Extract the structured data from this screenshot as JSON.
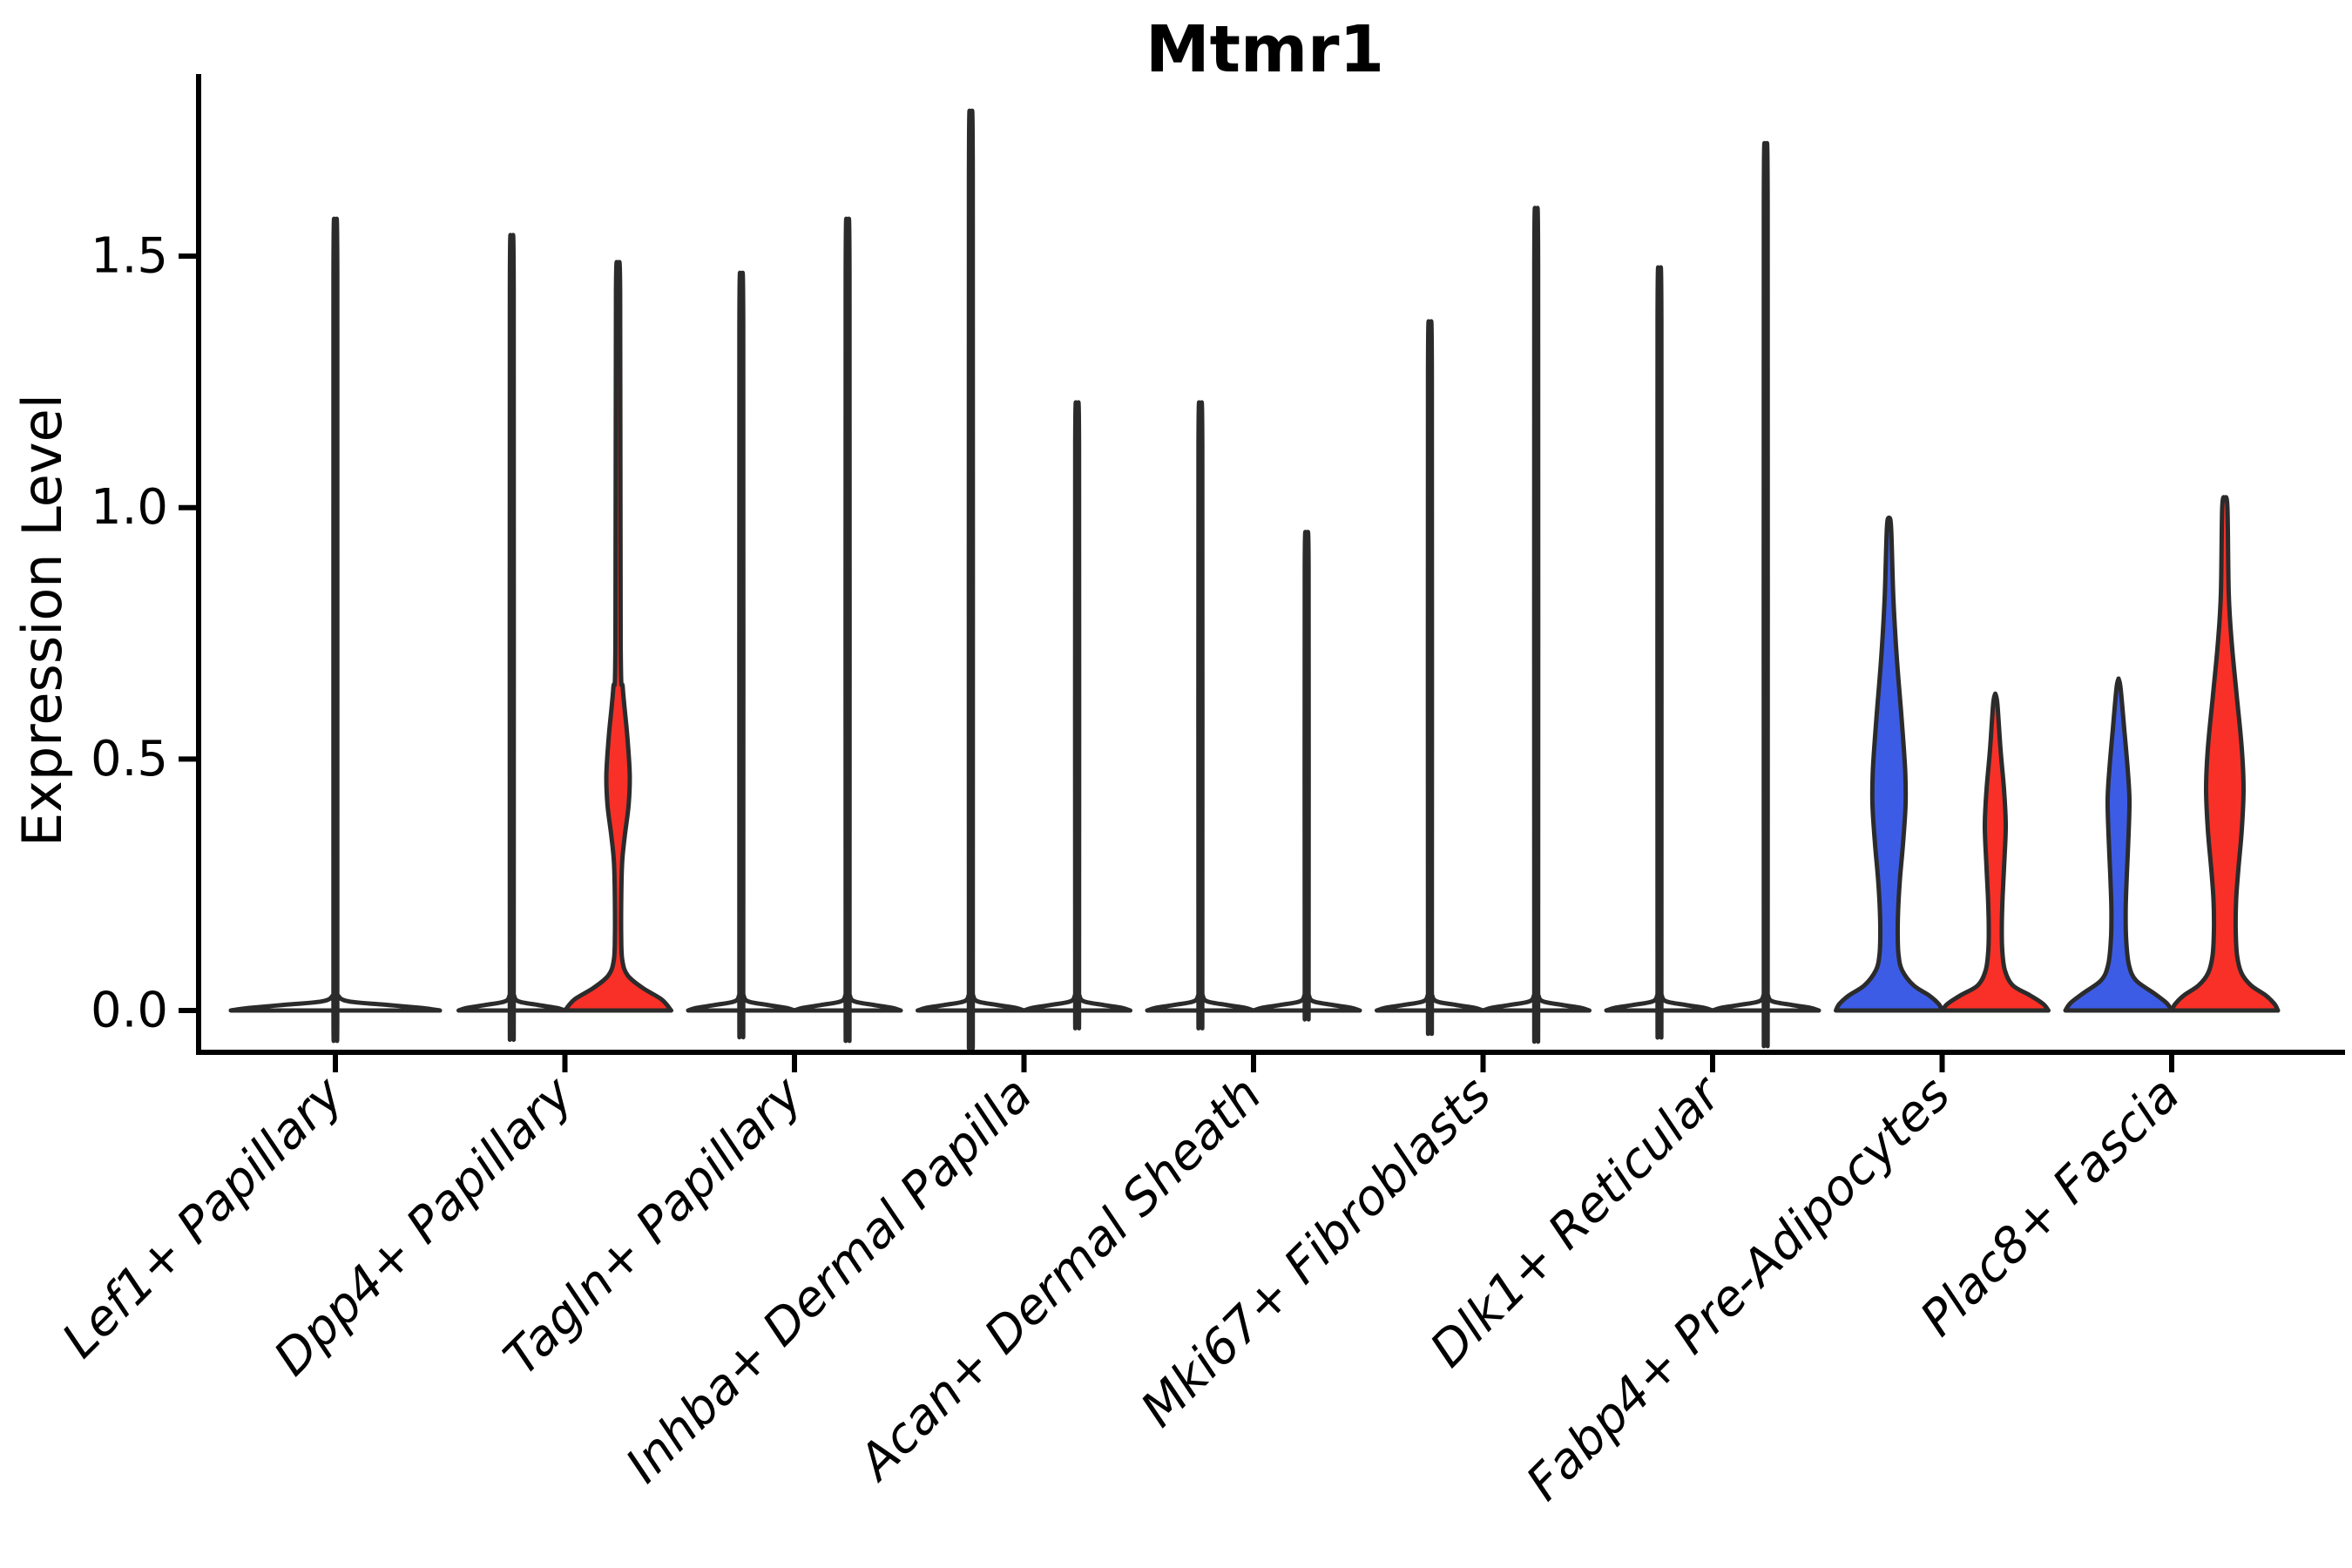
{
  "title": "Mtmr1",
  "axes": {
    "ylabel": "Expression Level",
    "yticks": [
      "0.0",
      "0.5",
      "1.0",
      "1.5"
    ],
    "ytick_values": [
      0.0,
      0.5,
      1.0,
      1.5
    ]
  },
  "colors": {
    "red": "#F93027",
    "blue": "#3D5CE5",
    "white": "#FFFFFF",
    "edge": "#2B2B2B",
    "axis": "#000000",
    "text": "#000000",
    "background": "#FFFFFF"
  },
  "chart_data": {
    "type": "violin",
    "title": "Mtmr1",
    "xlabel": "",
    "ylabel": "Expression Level",
    "ylim": [
      0,
      1.86
    ],
    "yticks": [
      0.0,
      0.5,
      1.0,
      1.5
    ],
    "grid": false,
    "legend": "none",
    "note": "Split violin plot; each category holds up to two condition violins (blue=left, red=right). Profiles are [expression_value, half_width_fraction_of_violin] density outlines; max_expression is the top of the density line.",
    "categories": [
      {
        "name": "Lef1+ Papillary",
        "violins": [
          {
            "side": "center",
            "color_name": "white",
            "fill": "#FFFFFF",
            "max_expression": 1.48,
            "full_width": true,
            "profile": [
              [
                1.48,
                0
              ],
              [
                1.465,
                0.018
              ],
              [
                0.05,
                0.018
              ],
              [
                0.03,
                0.025
              ],
              [
                0.018,
                0.13
              ],
              [
                0.011,
                0.5
              ],
              [
                0.005,
                0.83
              ],
              [
                0,
                1.0
              ]
            ]
          }
        ]
      },
      {
        "name": "Dpp4+ Papillary",
        "violins": [
          {
            "side": "left",
            "color_name": "white",
            "fill": "#FFFFFF",
            "max_expression": 1.45,
            "profile": [
              [
                1.45,
                0
              ],
              [
                1.435,
                0.036
              ],
              [
                0.05,
                0.036
              ],
              [
                0.03,
                0.043
              ],
              [
                0.018,
                0.13
              ],
              [
                0.011,
                0.49
              ],
              [
                0.005,
                0.85
              ],
              [
                0,
                1.0
              ]
            ]
          },
          {
            "side": "right",
            "color_name": "red",
            "fill": "#F93027",
            "max_expression": 1.45,
            "profile": [
              [
                1.45,
                0
              ],
              [
                1.43,
                0.04
              ],
              [
                0.73,
                0.05
              ],
              [
                0.64,
                0.09
              ],
              [
                0.55,
                0.17
              ],
              [
                0.47,
                0.22
              ],
              [
                0.41,
                0.2
              ],
              [
                0.35,
                0.13
              ],
              [
                0.3,
                0.08
              ],
              [
                0.24,
                0.062
              ],
              [
                0.15,
                0.059
              ],
              [
                0.1,
                0.08
              ],
              [
                0.07,
                0.18
              ],
              [
                0.045,
                0.46
              ],
              [
                0.022,
                0.82
              ],
              [
                0,
                1.0
              ]
            ]
          }
        ]
      },
      {
        "name": "Tagln+ Papillary",
        "violins": [
          {
            "side": "left",
            "color_name": "white",
            "fill": "#FFFFFF",
            "max_expression": 1.38,
            "profile": [
              [
                1.38,
                0
              ],
              [
                1.365,
                0.036
              ],
              [
                0.05,
                0.036
              ],
              [
                0.03,
                0.043
              ],
              [
                0.018,
                0.13
              ],
              [
                0.011,
                0.49
              ],
              [
                0.005,
                0.85
              ],
              [
                0,
                1.0
              ]
            ]
          },
          {
            "side": "right",
            "color_name": "white",
            "fill": "#FFFFFF",
            "max_expression": 1.48,
            "profile": [
              [
                1.48,
                0
              ],
              [
                1.465,
                0.036
              ],
              [
                0.05,
                0.036
              ],
              [
                0.03,
                0.043
              ],
              [
                0.018,
                0.13
              ],
              [
                0.011,
                0.49
              ],
              [
                0.005,
                0.85
              ],
              [
                0,
                1.0
              ]
            ]
          }
        ]
      },
      {
        "name": "Inhba+ Dermal Papilla",
        "violins": [
          {
            "side": "left",
            "color_name": "white",
            "fill": "#FFFFFF",
            "max_expression": 1.68,
            "profile": [
              [
                1.68,
                0
              ],
              [
                1.665,
                0.036
              ],
              [
                0.05,
                0.036
              ],
              [
                0.03,
                0.043
              ],
              [
                0.018,
                0.13
              ],
              [
                0.011,
                0.49
              ],
              [
                0.005,
                0.85
              ],
              [
                0,
                1.0
              ]
            ]
          },
          {
            "side": "right",
            "color_name": "white",
            "fill": "#FFFFFF",
            "max_expression": 1.14,
            "profile": [
              [
                1.14,
                0
              ],
              [
                1.125,
                0.036
              ],
              [
                0.05,
                0.036
              ],
              [
                0.03,
                0.043
              ],
              [
                0.018,
                0.13
              ],
              [
                0.011,
                0.49
              ],
              [
                0.005,
                0.85
              ],
              [
                0,
                1.0
              ]
            ]
          }
        ]
      },
      {
        "name": "Acan+ Dermal Sheath",
        "violins": [
          {
            "side": "left",
            "color_name": "white",
            "fill": "#FFFFFF",
            "max_expression": 1.14,
            "profile": [
              [
                1.14,
                0
              ],
              [
                1.125,
                0.036
              ],
              [
                0.05,
                0.036
              ],
              [
                0.03,
                0.043
              ],
              [
                0.018,
                0.13
              ],
              [
                0.011,
                0.49
              ],
              [
                0.005,
                0.85
              ],
              [
                0,
                1.0
              ]
            ]
          },
          {
            "side": "right",
            "color_name": "white",
            "fill": "#FFFFFF",
            "max_expression": 0.9,
            "profile": [
              [
                0.9,
                0
              ],
              [
                0.885,
                0.036
              ],
              [
                0.05,
                0.036
              ],
              [
                0.03,
                0.043
              ],
              [
                0.018,
                0.13
              ],
              [
                0.011,
                0.49
              ],
              [
                0.005,
                0.85
              ],
              [
                0,
                1.0
              ]
            ]
          }
        ]
      },
      {
        "name": "Mki67+ Fibroblasts",
        "violins": [
          {
            "side": "left",
            "color_name": "white",
            "fill": "#FFFFFF",
            "max_expression": 1.29,
            "profile": [
              [
                1.29,
                0
              ],
              [
                1.275,
                0.036
              ],
              [
                0.05,
                0.036
              ],
              [
                0.03,
                0.043
              ],
              [
                0.018,
                0.13
              ],
              [
                0.011,
                0.49
              ],
              [
                0.005,
                0.85
              ],
              [
                0,
                1.0
              ]
            ]
          },
          {
            "side": "right",
            "color_name": "white",
            "fill": "#FFFFFF",
            "max_expression": 1.5,
            "profile": [
              [
                1.5,
                0
              ],
              [
                1.485,
                0.036
              ],
              [
                0.05,
                0.036
              ],
              [
                0.03,
                0.043
              ],
              [
                0.018,
                0.13
              ],
              [
                0.011,
                0.49
              ],
              [
                0.005,
                0.85
              ],
              [
                0,
                1.0
              ]
            ]
          }
        ]
      },
      {
        "name": "Dlk1+ Reticular",
        "violins": [
          {
            "side": "left",
            "color_name": "white",
            "fill": "#FFFFFF",
            "max_expression": 1.39,
            "profile": [
              [
                1.39,
                0
              ],
              [
                1.375,
                0.036
              ],
              [
                0.05,
                0.036
              ],
              [
                0.03,
                0.043
              ],
              [
                0.018,
                0.13
              ],
              [
                0.011,
                0.49
              ],
              [
                0.005,
                0.85
              ],
              [
                0,
                1.0
              ]
            ]
          },
          {
            "side": "right",
            "color_name": "white",
            "fill": "#FFFFFF",
            "max_expression": 1.62,
            "profile": [
              [
                1.62,
                0
              ],
              [
                1.605,
                0.036
              ],
              [
                0.05,
                0.036
              ],
              [
                0.03,
                0.043
              ],
              [
                0.018,
                0.13
              ],
              [
                0.011,
                0.49
              ],
              [
                0.005,
                0.85
              ],
              [
                0,
                1.0
              ]
            ]
          }
        ]
      },
      {
        "name": "Fabp4+ Pre-Adipocytes",
        "violins": [
          {
            "side": "left",
            "color_name": "blue",
            "fill": "#3D5CE5",
            "max_expression": 0.98,
            "profile": [
              [
                0.98,
                0
              ],
              [
                0.96,
                0.04
              ],
              [
                0.82,
                0.082
              ],
              [
                0.7,
                0.148
              ],
              [
                0.58,
                0.238
              ],
              [
                0.48,
                0.303
              ],
              [
                0.41,
                0.311
              ],
              [
                0.33,
                0.262
              ],
              [
                0.26,
                0.205
              ],
              [
                0.2,
                0.172
              ],
              [
                0.15,
                0.164
              ],
              [
                0.11,
                0.18
              ],
              [
                0.08,
                0.246
              ],
              [
                0.05,
                0.46
              ],
              [
                0.03,
                0.754
              ],
              [
                0.013,
                0.934
              ],
              [
                0,
                1.0
              ]
            ]
          },
          {
            "side": "right",
            "color_name": "red",
            "fill": "#F93027",
            "max_expression": 0.63,
            "profile": [
              [
                0.63,
                0
              ],
              [
                0.61,
                0.04
              ],
              [
                0.52,
                0.098
              ],
              [
                0.44,
                0.164
              ],
              [
                0.37,
                0.197
              ],
              [
                0.3,
                0.172
              ],
              [
                0.23,
                0.139
              ],
              [
                0.17,
                0.123
              ],
              [
                0.12,
                0.131
              ],
              [
                0.08,
                0.18
              ],
              [
                0.05,
                0.328
              ],
              [
                0.03,
                0.656
              ],
              [
                0.013,
                0.902
              ],
              [
                0,
                1.0
              ]
            ]
          }
        ]
      },
      {
        "name": "Plac8+ Fascia",
        "violins": [
          {
            "side": "left",
            "color_name": "blue",
            "fill": "#3D5CE5",
            "max_expression": 0.66,
            "profile": [
              [
                0.66,
                0
              ],
              [
                0.64,
                0.04
              ],
              [
                0.56,
                0.107
              ],
              [
                0.48,
                0.172
              ],
              [
                0.42,
                0.205
              ],
              [
                0.35,
                0.189
              ],
              [
                0.27,
                0.156
              ],
              [
                0.2,
                0.134
              ],
              [
                0.14,
                0.144
              ],
              [
                0.09,
                0.197
              ],
              [
                0.06,
                0.328
              ],
              [
                0.035,
                0.656
              ],
              [
                0.015,
                0.902
              ],
              [
                0,
                1.0
              ]
            ]
          },
          {
            "side": "right",
            "color_name": "red",
            "fill": "#F93027",
            "max_expression": 1.02,
            "profile": [
              [
                1.02,
                0
              ],
              [
                1.0,
                0.049
              ],
              [
                0.83,
                0.074
              ],
              [
                0.73,
                0.131
              ],
              [
                0.62,
                0.23
              ],
              [
                0.52,
                0.32
              ],
              [
                0.44,
                0.352
              ],
              [
                0.36,
                0.32
              ],
              [
                0.28,
                0.254
              ],
              [
                0.22,
                0.213
              ],
              [
                0.16,
                0.205
              ],
              [
                0.11,
                0.23
              ],
              [
                0.075,
                0.311
              ],
              [
                0.05,
                0.492
              ],
              [
                0.03,
                0.77
              ],
              [
                0.013,
                0.934
              ],
              [
                0,
                1.0
              ]
            ]
          }
        ]
      }
    ]
  },
  "layout_note": "white-filled violins render as thin dark lines over flat base pancakes, matching screenshot"
}
